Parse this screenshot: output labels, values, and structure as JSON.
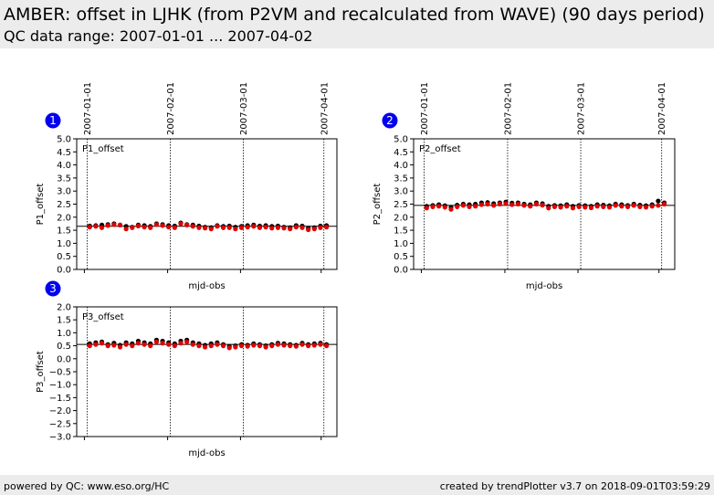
{
  "header": {
    "title": "AMBER: offset in LJHK (from P2VM and recalculated from WAVE) (90 days period)",
    "subtitle": "QC data range: 2007-01-01 ... 2007-04-02"
  },
  "footer": {
    "left": "powered by QC: www.eso.org/HC",
    "right": "created by trendPlotter v3.7 on 2018-09-01T03:59:29"
  },
  "colors": {
    "points_primary": "#e00000",
    "points_secondary": "#000000",
    "badge": "#0000ee",
    "header_bg": "#ececec"
  },
  "chart_data": [
    {
      "type": "scatter",
      "badge": "1",
      "panel_label": "P1_offset",
      "ylabel": "P1_offset",
      "xlabel": "mjd-obs",
      "x_ticks": [
        "2007-01-01",
        "2007-02-01",
        "2007-03-01",
        "2007-04-01"
      ],
      "y_ticks": [
        "0.0",
        "0.5",
        "1.0",
        "1.5",
        "2.0",
        "2.5",
        "3.0",
        "3.5",
        "4.0",
        "4.5",
        "5.0"
      ],
      "ylim": [
        0,
        5
      ],
      "reference_line": 1.65,
      "series": [
        {
          "values": [
            1.62,
            1.65,
            1.6,
            1.68,
            1.72,
            1.7,
            1.55,
            1.6,
            1.66,
            1.62,
            1.6,
            1.72,
            1.68,
            1.62,
            1.6,
            1.75,
            1.7,
            1.65,
            1.6,
            1.58,
            1.55,
            1.65,
            1.6,
            1.6,
            1.55,
            1.6,
            1.62,
            1.65,
            1.6,
            1.62,
            1.58,
            1.6,
            1.58,
            1.55,
            1.62,
            1.6,
            1.52,
            1.55,
            1.6,
            1.62
          ]
        },
        {
          "values": [
            1.66,
            1.68,
            1.7,
            1.72,
            1.75,
            1.7,
            1.65,
            1.62,
            1.7,
            1.68,
            1.65,
            1.75,
            1.72,
            1.68,
            1.66,
            1.78,
            1.72,
            1.7,
            1.66,
            1.62,
            1.6,
            1.68,
            1.65,
            1.66,
            1.62,
            1.65,
            1.68,
            1.7,
            1.66,
            1.68,
            1.65,
            1.66,
            1.62,
            1.6,
            1.68,
            1.66,
            1.58,
            1.6,
            1.66,
            1.68
          ]
        }
      ]
    },
    {
      "type": "scatter",
      "badge": "2",
      "panel_label": "P2_offset",
      "ylabel": "P2_offset",
      "xlabel": "mjd-obs",
      "x_ticks": [
        "2007-01-01",
        "2007-02-01",
        "2007-03-01",
        "2007-04-01"
      ],
      "y_ticks": [
        "0.0",
        "0.5",
        "1.0",
        "1.5",
        "2.0",
        "2.5",
        "3.0",
        "3.5",
        "4.0",
        "4.5",
        "5.0"
      ],
      "ylim": [
        0,
        5
      ],
      "reference_line": 2.45,
      "series": [
        {
          "values": [
            2.35,
            2.4,
            2.42,
            2.38,
            2.3,
            2.4,
            2.45,
            2.4,
            2.42,
            2.48,
            2.5,
            2.45,
            2.5,
            2.52,
            2.48,
            2.5,
            2.45,
            2.42,
            2.5,
            2.46,
            2.35,
            2.4,
            2.38,
            2.42,
            2.35,
            2.4,
            2.38,
            2.36,
            2.42,
            2.4,
            2.38,
            2.45,
            2.42,
            2.4,
            2.45,
            2.4,
            2.38,
            2.42,
            2.45,
            2.5
          ]
        },
        {
          "values": [
            2.42,
            2.45,
            2.48,
            2.44,
            2.38,
            2.46,
            2.5,
            2.48,
            2.5,
            2.55,
            2.56,
            2.52,
            2.55,
            2.58,
            2.54,
            2.55,
            2.5,
            2.48,
            2.55,
            2.52,
            2.42,
            2.45,
            2.44,
            2.48,
            2.42,
            2.45,
            2.44,
            2.42,
            2.48,
            2.46,
            2.44,
            2.5,
            2.48,
            2.45,
            2.5,
            2.46,
            2.44,
            2.48,
            2.62,
            2.55
          ]
        }
      ]
    },
    {
      "type": "scatter",
      "badge": "3",
      "panel_label": "P3_offset",
      "ylabel": "P3_offset",
      "xlabel": "mjd-obs",
      "x_ticks": [
        "2007-01-01",
        "2007-02-01",
        "2007-03-01",
        "2007-04-01"
      ],
      "y_ticks": [
        "−3.0",
        "−2.5",
        "−2.0",
        "−1.5",
        "−1.0",
        "−0.5",
        "0.0",
        "0.5",
        "1.0",
        "1.5",
        "2.0"
      ],
      "ylim": [
        -3,
        2
      ],
      "reference_line": 0.55,
      "series": [
        {
          "values": [
            0.5,
            0.55,
            0.6,
            0.5,
            0.52,
            0.45,
            0.55,
            0.5,
            0.6,
            0.55,
            0.5,
            0.65,
            0.6,
            0.55,
            0.5,
            0.6,
            0.65,
            0.55,
            0.5,
            0.45,
            0.5,
            0.55,
            0.5,
            0.42,
            0.45,
            0.5,
            0.48,
            0.52,
            0.5,
            0.45,
            0.5,
            0.55,
            0.52,
            0.5,
            0.48,
            0.55,
            0.5,
            0.52,
            0.55,
            0.5
          ]
        },
        {
          "values": [
            0.58,
            0.62,
            0.65,
            0.55,
            0.6,
            0.52,
            0.62,
            0.58,
            0.68,
            0.62,
            0.58,
            0.72,
            0.68,
            0.62,
            0.58,
            0.68,
            0.72,
            0.62,
            0.58,
            0.52,
            0.58,
            0.62,
            0.55,
            0.48,
            0.5,
            0.55,
            0.52,
            0.58,
            0.55,
            0.5,
            0.55,
            0.6,
            0.58,
            0.55,
            0.52,
            0.6,
            0.55,
            0.58,
            0.6,
            0.55
          ]
        }
      ]
    }
  ]
}
